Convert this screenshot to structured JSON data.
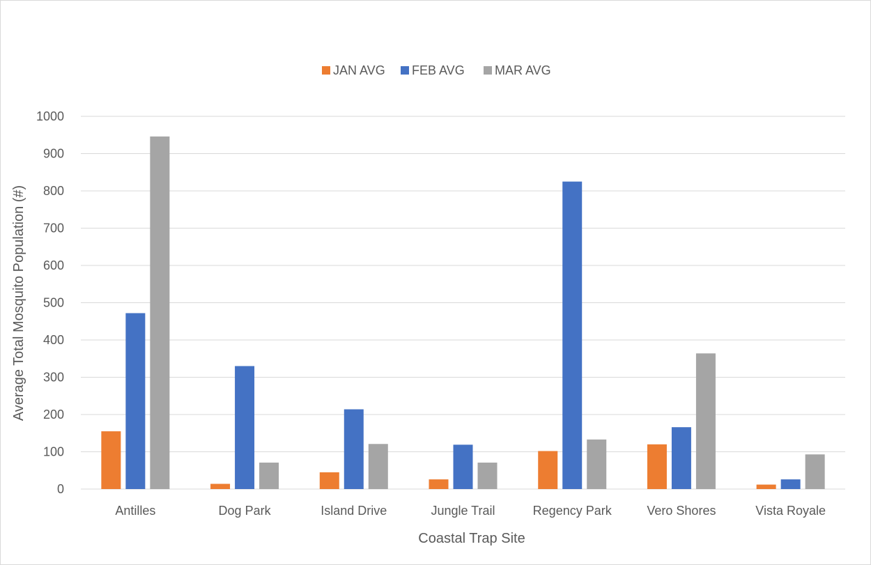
{
  "chart_data": {
    "type": "bar",
    "title": "",
    "xlabel": "Coastal Trap Site",
    "ylabel": "Average Total Mosquito Population (#)",
    "ylim": [
      0,
      1000
    ],
    "yticks": [
      0,
      100,
      200,
      300,
      400,
      500,
      600,
      700,
      800,
      900,
      1000
    ],
    "grid": true,
    "legend_position": "top-center",
    "categories": [
      "Antilles",
      "Dog Park",
      "Island Drive",
      "Jungle Trail",
      "Regency Park",
      "Vero Shores",
      "Vista Royale"
    ],
    "series": [
      {
        "name": "JAN AVG",
        "color": "#ED7D31",
        "values": [
          155,
          14,
          45,
          26,
          102,
          120,
          12
        ]
      },
      {
        "name": "FEB AVG",
        "color": "#4472C4",
        "values": [
          472,
          330,
          214,
          119,
          825,
          166,
          26
        ]
      },
      {
        "name": "MAR AVG",
        "color": "#A5A5A5",
        "values": [
          946,
          71,
          121,
          71,
          133,
          364,
          93
        ]
      }
    ]
  }
}
